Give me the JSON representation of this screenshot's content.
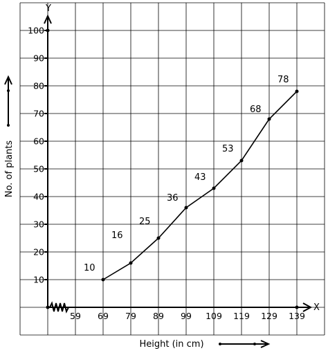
{
  "chart_data": {
    "type": "line",
    "title": "",
    "xlabel": "Height (in cm)",
    "ylabel": "No. of plants",
    "x_axis_letter": "X",
    "y_axis_letter": "Y",
    "x_tick_labels": [
      "59",
      "69",
      "79",
      "89",
      "99",
      "109",
      "119",
      "129",
      "139"
    ],
    "y_tick_labels": [
      "10",
      "20",
      "30",
      "40",
      "50",
      "60",
      "70",
      "80",
      "90",
      "100"
    ],
    "ylim": [
      0,
      100
    ],
    "grid": true,
    "axis_break": "zigzag on x-axis near origin",
    "series": [
      {
        "x": [
          69,
          79,
          89,
          99,
          109,
          119,
          129,
          139
        ],
        "values": [
          10,
          16,
          25,
          36,
          43,
          53,
          68,
          78
        ],
        "point_labels": [
          "10",
          "16",
          "25",
          "36",
          "43",
          "53",
          "68",
          "78"
        ]
      }
    ]
  }
}
